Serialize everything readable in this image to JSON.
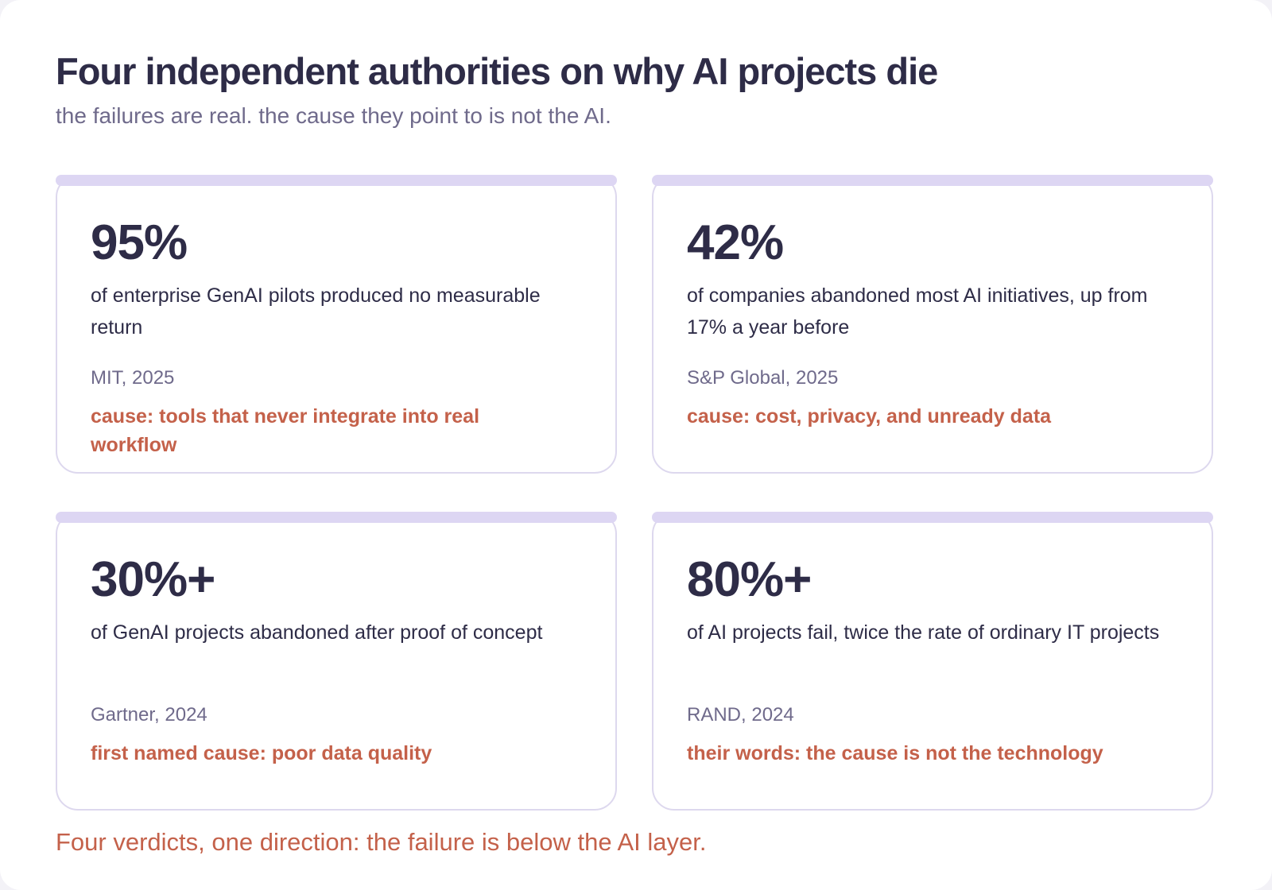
{
  "header": {
    "title": "Four independent authorities on why AI projects die",
    "subtitle": "the failures are real. the cause they point to is not the AI."
  },
  "cards": [
    {
      "stat": "95%",
      "description": "of enterprise GenAI pilots produced no measurable return",
      "source": "MIT, 2025",
      "cause": "cause: tools that never integrate into real workflow"
    },
    {
      "stat": "42%",
      "description": "of companies abandoned most AI initiatives, up from 17% a year before",
      "source": "S&P Global, 2025",
      "cause": "cause: cost, privacy, and unready data"
    },
    {
      "stat": "30%+",
      "description": "of GenAI projects abandoned after proof of concept",
      "source": "Gartner, 2024",
      "cause": "first named cause: poor data quality"
    },
    {
      "stat": "80%+",
      "description": "of AI projects fail, twice the rate of ordinary IT projects",
      "source": "RAND, 2024",
      "cause": "their words: the cause is not the technology"
    }
  ],
  "footer": {
    "text": "Four verdicts, one direction: the failure is below the AI layer."
  },
  "colors": {
    "title": "#2e2c47",
    "muted": "#6f6a8b",
    "accent": "#c4614a",
    "card_border": "#ddd8ee",
    "card_topbar": "#ddd6f3"
  }
}
